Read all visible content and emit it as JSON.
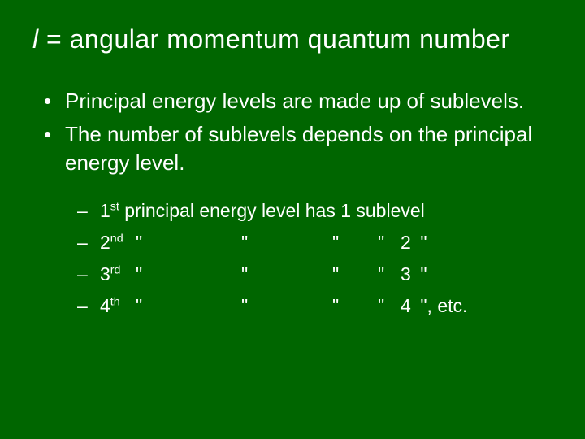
{
  "colors": {
    "background": "#006600",
    "text": "#ffffff"
  },
  "typography": {
    "title_fontsize": 32,
    "body_fontsize": 26,
    "sub_fontsize": 23,
    "font_family": "Arial"
  },
  "title": {
    "variable": "l",
    "equals": " = ",
    "rest": " angular momentum quantum number"
  },
  "bullets": [
    "Principal energy levels are made up of sublevels.",
    "The number of sublevels depends on the principal energy level."
  ],
  "sub": {
    "first": {
      "num": "1",
      "ord": "st",
      "text": " principal energy level has 1 sublevel"
    },
    "rows": [
      {
        "num": "2",
        "ord": "nd",
        "d1": "\"",
        "d2": "\"",
        "d3": "\"",
        "d4": "\"",
        "count": "2",
        "trail": " \""
      },
      {
        "num": "3",
        "ord": "rd",
        "d1": "\"",
        "d2": "\"",
        "d3": "\"",
        "d4": "\"",
        "count": "3",
        "trail": " \""
      },
      {
        "num": "4",
        "ord": "th",
        "d1": "\"",
        "d2": "\"",
        "d3": "\"",
        "d4": "\"",
        "count": "4",
        "trail": " \", etc."
      }
    ]
  }
}
